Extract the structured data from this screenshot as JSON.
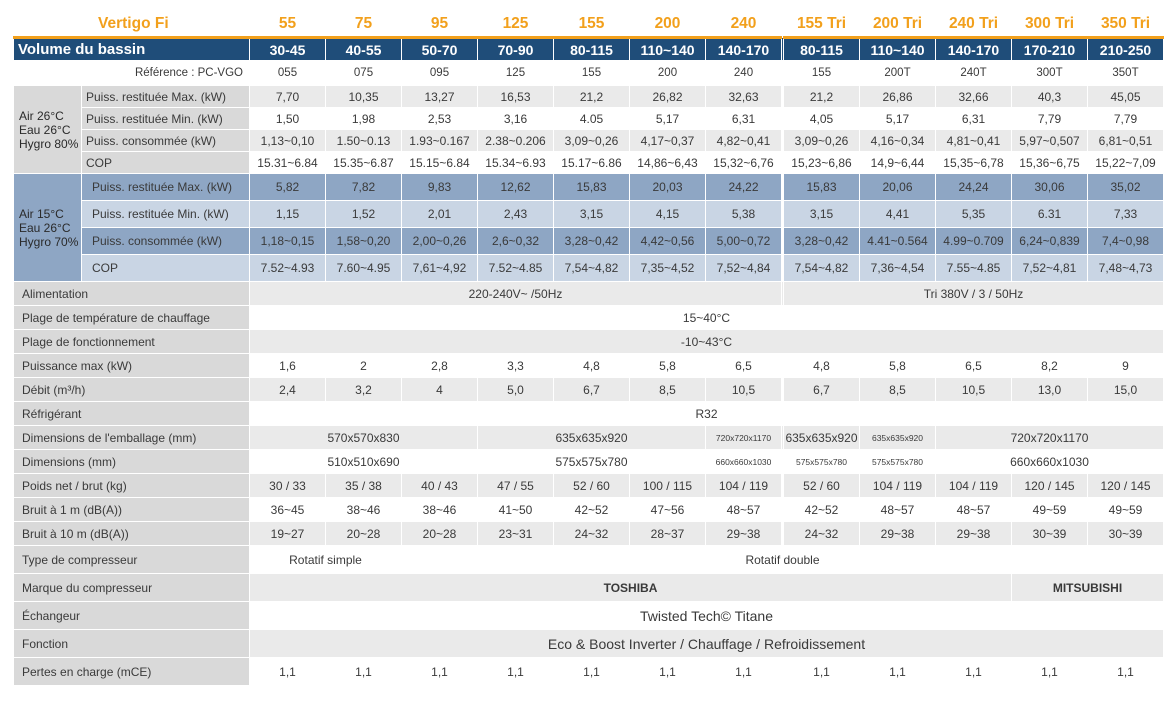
{
  "header": {
    "brand": "Vertigo Fi",
    "models": [
      "55",
      "75",
      "95",
      "125",
      "155",
      "200",
      "240",
      "155 Tri",
      "200 Tri",
      "240 Tri",
      "300 Tri",
      "350 Tri"
    ],
    "volume_label": "Volume du bassin",
    "volumes": [
      "30-45",
      "40-55",
      "50-70",
      "70-90",
      "80-115",
      "110~140",
      "140-170",
      "80-115",
      "110~140",
      "140-170",
      "170-210",
      "210-250"
    ],
    "reference_label": "Référence : PC-VGO",
    "references": [
      "055",
      "075",
      "095",
      "125",
      "155",
      "200",
      "240",
      "155",
      "200T",
      "240T",
      "300T",
      "350T"
    ]
  },
  "group1": {
    "condition": "Air 26°C Eau 26°C Hygro 80%",
    "rows": [
      {
        "label": "Puiss. restituée Max. (kW)",
        "values": [
          "7,70",
          "10,35",
          "13,27",
          "16,53",
          "21,2",
          "26,82",
          "32,63",
          "21,2",
          "26,86",
          "32,66",
          "40,3",
          "45,05"
        ]
      },
      {
        "label": "Puiss. restituée Min. (kW)",
        "values": [
          "1,50",
          "1,98",
          "2,53",
          "3,16",
          "4.05",
          "5,17",
          "6,31",
          "4,05",
          "5,17",
          "6,31",
          "7,79",
          "7,79"
        ]
      },
      {
        "label": "Puiss. consommée (kW)",
        "values": [
          "1,13~0,10",
          "1.50~0.13",
          "1.93~0.167",
          "2.38~0.206",
          "3,09~0,26",
          "4,17~0,37",
          "4,82~0,41",
          "3,09~0,26",
          "4,16~0,34",
          "4,81~0,41",
          "5,97~0,507",
          "6,81~0,51"
        ]
      },
      {
        "label": "COP",
        "values": [
          "15.31~6.84",
          "15.35~6.87",
          "15.15~6.84",
          "15.34~6.93",
          "15.17~6.86",
          "14,86~6,43",
          "15,32~6,76",
          "15,23~6,86",
          "14,9~6,44",
          "15,35~6,78",
          "15,36~6,75",
          "15,22~7,09"
        ]
      }
    ]
  },
  "group2": {
    "condition": "Air 15°C Eau 26°C Hygro 70%",
    "rows": [
      {
        "label": "Puiss. restituée Max. (kW)",
        "values": [
          "5,82",
          "7,82",
          "9,83",
          "12,62",
          "15,83",
          "20,03",
          "24,22",
          "15,83",
          "20,06",
          "24,24",
          "30,06",
          "35,02"
        ]
      },
      {
        "label": "Puiss. restituée Min. (kW)",
        "values": [
          "1,15",
          "1,52",
          "2,01",
          "2,43",
          "3,15",
          "4,15",
          "5,38",
          "3,15",
          "4,41",
          "5,35",
          "6.31",
          "7,33"
        ]
      },
      {
        "label": "Puiss. consommée (kW)",
        "values": [
          "1,18~0,15",
          "1,58~0,20",
          "2,00~0,26",
          "2,6~0,32",
          "3,28~0,42",
          "4,42~0,56",
          "5,00~0,72",
          "3,28~0,42",
          "4.41~0.564",
          "4.99~0.709",
          "6,24~0,839",
          "7,4~0,98"
        ]
      },
      {
        "label": "COP",
        "values": [
          "7.52~4.93",
          "7.60~4.95",
          "7,61~4,92",
          "7.52~4.85",
          "7,54~4,82",
          "7,35~4,52",
          "7,52~4,84",
          "7,54~4,82",
          "7,36~4,54",
          "7.55~4.85",
          "7,52~4,81",
          "7,48~4,73"
        ]
      }
    ]
  },
  "specs": {
    "alimentation": {
      "label": "Alimentation",
      "mono": "220-240V~ /50Hz",
      "tri": "Tri 380V / 3 / 50Hz"
    },
    "plage_chauffage": {
      "label": "Plage de température de chauffage",
      "value": "15~40°C"
    },
    "plage_fonctionnement": {
      "label": "Plage de fonctionnement",
      "value": "-10~43°C"
    },
    "puissance_max": {
      "label": "Puissance max (kW)",
      "values": [
        "1,6",
        "2",
        "2,8",
        "3,3",
        "4,8",
        "5,8",
        "6,5",
        "4,8",
        "5,8",
        "6,5",
        "8,2",
        "9"
      ]
    },
    "debit": {
      "label": "Débit (m³/h)",
      "values": [
        "2,4",
        "3,2",
        "4",
        "5,0",
        "6,7",
        "8,5",
        "10,5",
        "6,7",
        "8,5",
        "10,5",
        "13,0",
        "15,0"
      ]
    },
    "refrigerant": {
      "label": "Réfrigérant",
      "value": "R32"
    },
    "dim_emballage": {
      "label": "Dimensions de l'emballage (mm)",
      "v1": "570x570x830",
      "v2": "635x635x920",
      "v3": "720x720x1170",
      "v4": "635x635x920",
      "v5": "635x635x920",
      "v6": "720x720x1170"
    },
    "dimensions": {
      "label": "Dimensions (mm)",
      "v1": "510x510x690",
      "v2": "575x575x780",
      "v3": "660x660x1030",
      "v4": "575x575x780",
      "v5": "575x575x780",
      "v6": "660x660x1030"
    },
    "poids": {
      "label": "Poids net / brut (kg)",
      "values": [
        "30 / 33",
        "35 / 38",
        "40 / 43",
        "47 / 55",
        "52 / 60",
        "100 / 115",
        "104 / 119",
        "52 / 60",
        "104 / 119",
        "104 / 119",
        "120 / 145",
        "120 / 145"
      ]
    },
    "bruit1": {
      "label": "Bruit à 1 m (dB(A))",
      "values": [
        "36~45",
        "38~46",
        "38~46",
        "41~50",
        "42~52",
        "47~56",
        "48~57",
        "42~52",
        "48~57",
        "48~57",
        "49~59",
        "49~59"
      ]
    },
    "bruit10": {
      "label": "Bruit à 10 m (dB(A))",
      "values": [
        "19~27",
        "20~28",
        "20~28",
        "23~31",
        "24~32",
        "28~37",
        "29~38",
        "24~32",
        "29~38",
        "29~38",
        "30~39",
        "30~39"
      ]
    },
    "type_compresseur": {
      "label": "Type de compresseur",
      "simple": "Rotatif simple",
      "double": "Rotatif double"
    },
    "marque_compresseur": {
      "label": "Marque du compresseur",
      "toshiba": "TOSHIBA",
      "mitsubishi": "MITSUBISHI"
    },
    "echangeur": {
      "label": "Échangeur",
      "value": "Twisted Tech© Titane"
    },
    "fonction": {
      "label": "Fonction",
      "value": "Eco & Boost Inverter / Chauffage / Refroidissement"
    },
    "pertes": {
      "label": "Pertes en charge (mCE)",
      "values": [
        "1,1",
        "1,1",
        "1,1",
        "1,1",
        "1,1",
        "1,1",
        "1,1",
        "1,1",
        "1,1",
        "1,1",
        "1,1",
        "1,1"
      ]
    }
  }
}
